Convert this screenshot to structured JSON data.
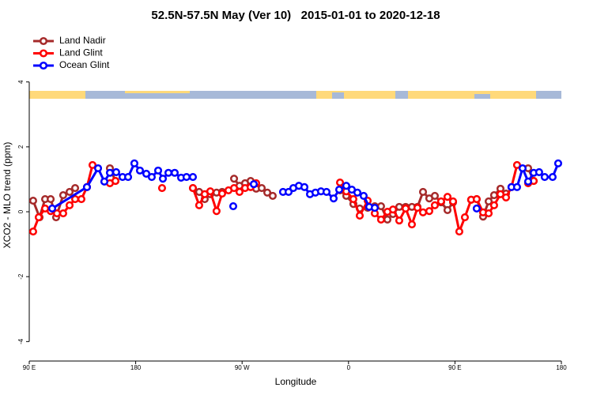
{
  "chart_data": {
    "type": "line",
    "title": "52.5N-57.5N May (Ver 10)   2015-01-01 to 2020-12-18",
    "x_label": "Longitude",
    "y_label": "XCO2 - MLO trend (ppm)",
    "xlim": [
      90,
      540
    ],
    "ylim": [
      -4.6,
      5.6
    ],
    "xticks": [
      {
        "value": 90,
        "label": "90 E"
      },
      {
        "value": 180,
        "label": "180"
      },
      {
        "value": 270,
        "label": "90 W"
      },
      {
        "value": 360,
        "label": "0"
      },
      {
        "value": 450,
        "label": "90 E"
      },
      {
        "value": 540,
        "label": "180"
      }
    ],
    "yticks": [
      -4,
      -2,
      0,
      2,
      4
    ],
    "legend": "top-left",
    "series": [
      {
        "name": "Land Nadir",
        "color": "#a52a2a",
        "x": [
          93.3,
          98.7,
          103.4,
          108.1,
          112.7,
          118.7,
          124.1,
          128.8,
          null,
          158.2,
          162.9,
          null,
          228.4,
          233.7,
          238.4,
          243.1,
          248.4,
          253.1,
          null,
          263.2,
          267.8,
          272.5,
          277.2,
          281.9,
          286.6,
          291.3,
          295.9,
          null,
          352.8,
          358.1,
          364.1,
          369.5,
          376.2,
          382.2,
          387.5,
          392.9,
          397.6,
          402.9,
          408.3,
          413.6,
          418.3,
          423.0,
          428.3,
          433.0,
          438.3,
          443.7,
          448.4,
          null,
          463.7,
          468.4,
          473.8,
          478.5,
          483.1,
          488.5,
          493.2,
          null,
          511.9,
          516.6
        ],
        "values": [
          0.34,
          -0.17,
          0.39,
          0.39,
          -0.17,
          0.51,
          0.61,
          0.73,
          null,
          1.34,
          0.95,
          null,
          0.73,
          0.61,
          0.39,
          0.54,
          0.59,
          0.61,
          null,
          1.02,
          0.8,
          0.88,
          0.95,
          0.71,
          0.73,
          0.59,
          0.49,
          null,
          0.66,
          0.49,
          0.24,
          0.1,
          0.12,
          0.17,
          0.17,
          -0.24,
          -0.07,
          0.15,
          0.15,
          0.15,
          0.15,
          0.61,
          0.41,
          0.49,
          0.29,
          0.05,
          0.29,
          null,
          0.37,
          0.39,
          -0.15,
          0.32,
          0.51,
          0.71,
          0.56,
          null,
          1.34,
          0.95
        ]
      },
      {
        "name": "Land Glint",
        "color": "#ff0000",
        "x": [
          93.3,
          98.0,
          103.4,
          108.1,
          113.4,
          118.7,
          124.1,
          128.8,
          134.1,
          138.8,
          143.5,
          null,
          158.2,
          162.9,
          null,
          202.3,
          null,
          228.4,
          233.7,
          238.4,
          243.1,
          248.4,
          253.1,
          258.5,
          263.2,
          267.8,
          272.5,
          277.2,
          281.9,
          null,
          352.8,
          358.1,
          364.1,
          369.5,
          376.2,
          382.2,
          387.5,
          392.9,
          397.6,
          402.9,
          408.3,
          413.6,
          418.3,
          423.0,
          428.3,
          433.0,
          438.3,
          443.7,
          448.4,
          453.7,
          458.4,
          463.7,
          468.4,
          473.8,
          478.5,
          483.1,
          488.5,
          493.2,
          497.8,
          502.5,
          null,
          511.9,
          516.6
        ],
        "values": [
          -0.61,
          -0.17,
          0.1,
          0.02,
          -0.05,
          -0.05,
          0.2,
          0.39,
          0.39,
          0.76,
          1.44,
          null,
          0.88,
          0.95,
          null,
          0.73,
          null,
          0.73,
          0.2,
          0.54,
          0.63,
          0.02,
          0.56,
          0.66,
          0.73,
          0.61,
          0.73,
          0.76,
          0.88,
          null,
          0.9,
          0.63,
          0.39,
          -0.12,
          0.34,
          -0.05,
          -0.24,
          0.0,
          0.07,
          -0.27,
          0.1,
          -0.39,
          0.12,
          -0.02,
          0.02,
          0.2,
          0.32,
          0.46,
          0.32,
          -0.61,
          -0.17,
          0.37,
          0.39,
          -0.02,
          -0.05,
          0.2,
          0.54,
          0.44,
          0.76,
          1.44,
          null,
          0.88,
          0.95
        ]
      },
      {
        "name": "Ocean Glint",
        "color": "#0000ff",
        "x": [
          109.4,
          138.8,
          148.2,
          153.5,
          158.2,
          163.5,
          168.9,
          173.6,
          178.9,
          183.6,
          189.0,
          193.6,
          199.0,
          203.0,
          207.7,
          213.0,
          218.4,
          223.0,
          228.4,
          null,
          262.5,
          null,
          279.9,
          null,
          304.6,
          309.3,
          313.3,
          318.0,
          322.7,
          327.4,
          332.0,
          336.7,
          341.4,
          347.4,
          352.1,
          358.1,
          362.8,
          367.5,
          372.8,
          377.5,
          382.2,
          null,
          468.4,
          null,
          497.8,
          502.5,
          507.2,
          511.9,
          516.6,
          521.2,
          525.9,
          532.6,
          537.3
        ],
        "values": [
          0.1,
          0.76,
          1.34,
          0.93,
          1.2,
          1.22,
          1.07,
          1.07,
          1.49,
          1.27,
          1.17,
          1.07,
          1.27,
          1.02,
          1.2,
          1.2,
          1.05,
          1.07,
          1.07,
          null,
          0.17,
          null,
          0.85,
          null,
          0.61,
          0.61,
          0.73,
          0.8,
          0.76,
          0.54,
          0.59,
          0.63,
          0.61,
          0.41,
          0.68,
          0.8,
          0.68,
          0.59,
          0.49,
          0.15,
          0.12,
          null,
          0.1,
          null,
          0.76,
          0.76,
          1.34,
          0.93,
          1.2,
          1.22,
          1.07,
          1.07,
          1.49
        ]
      }
    ]
  }
}
